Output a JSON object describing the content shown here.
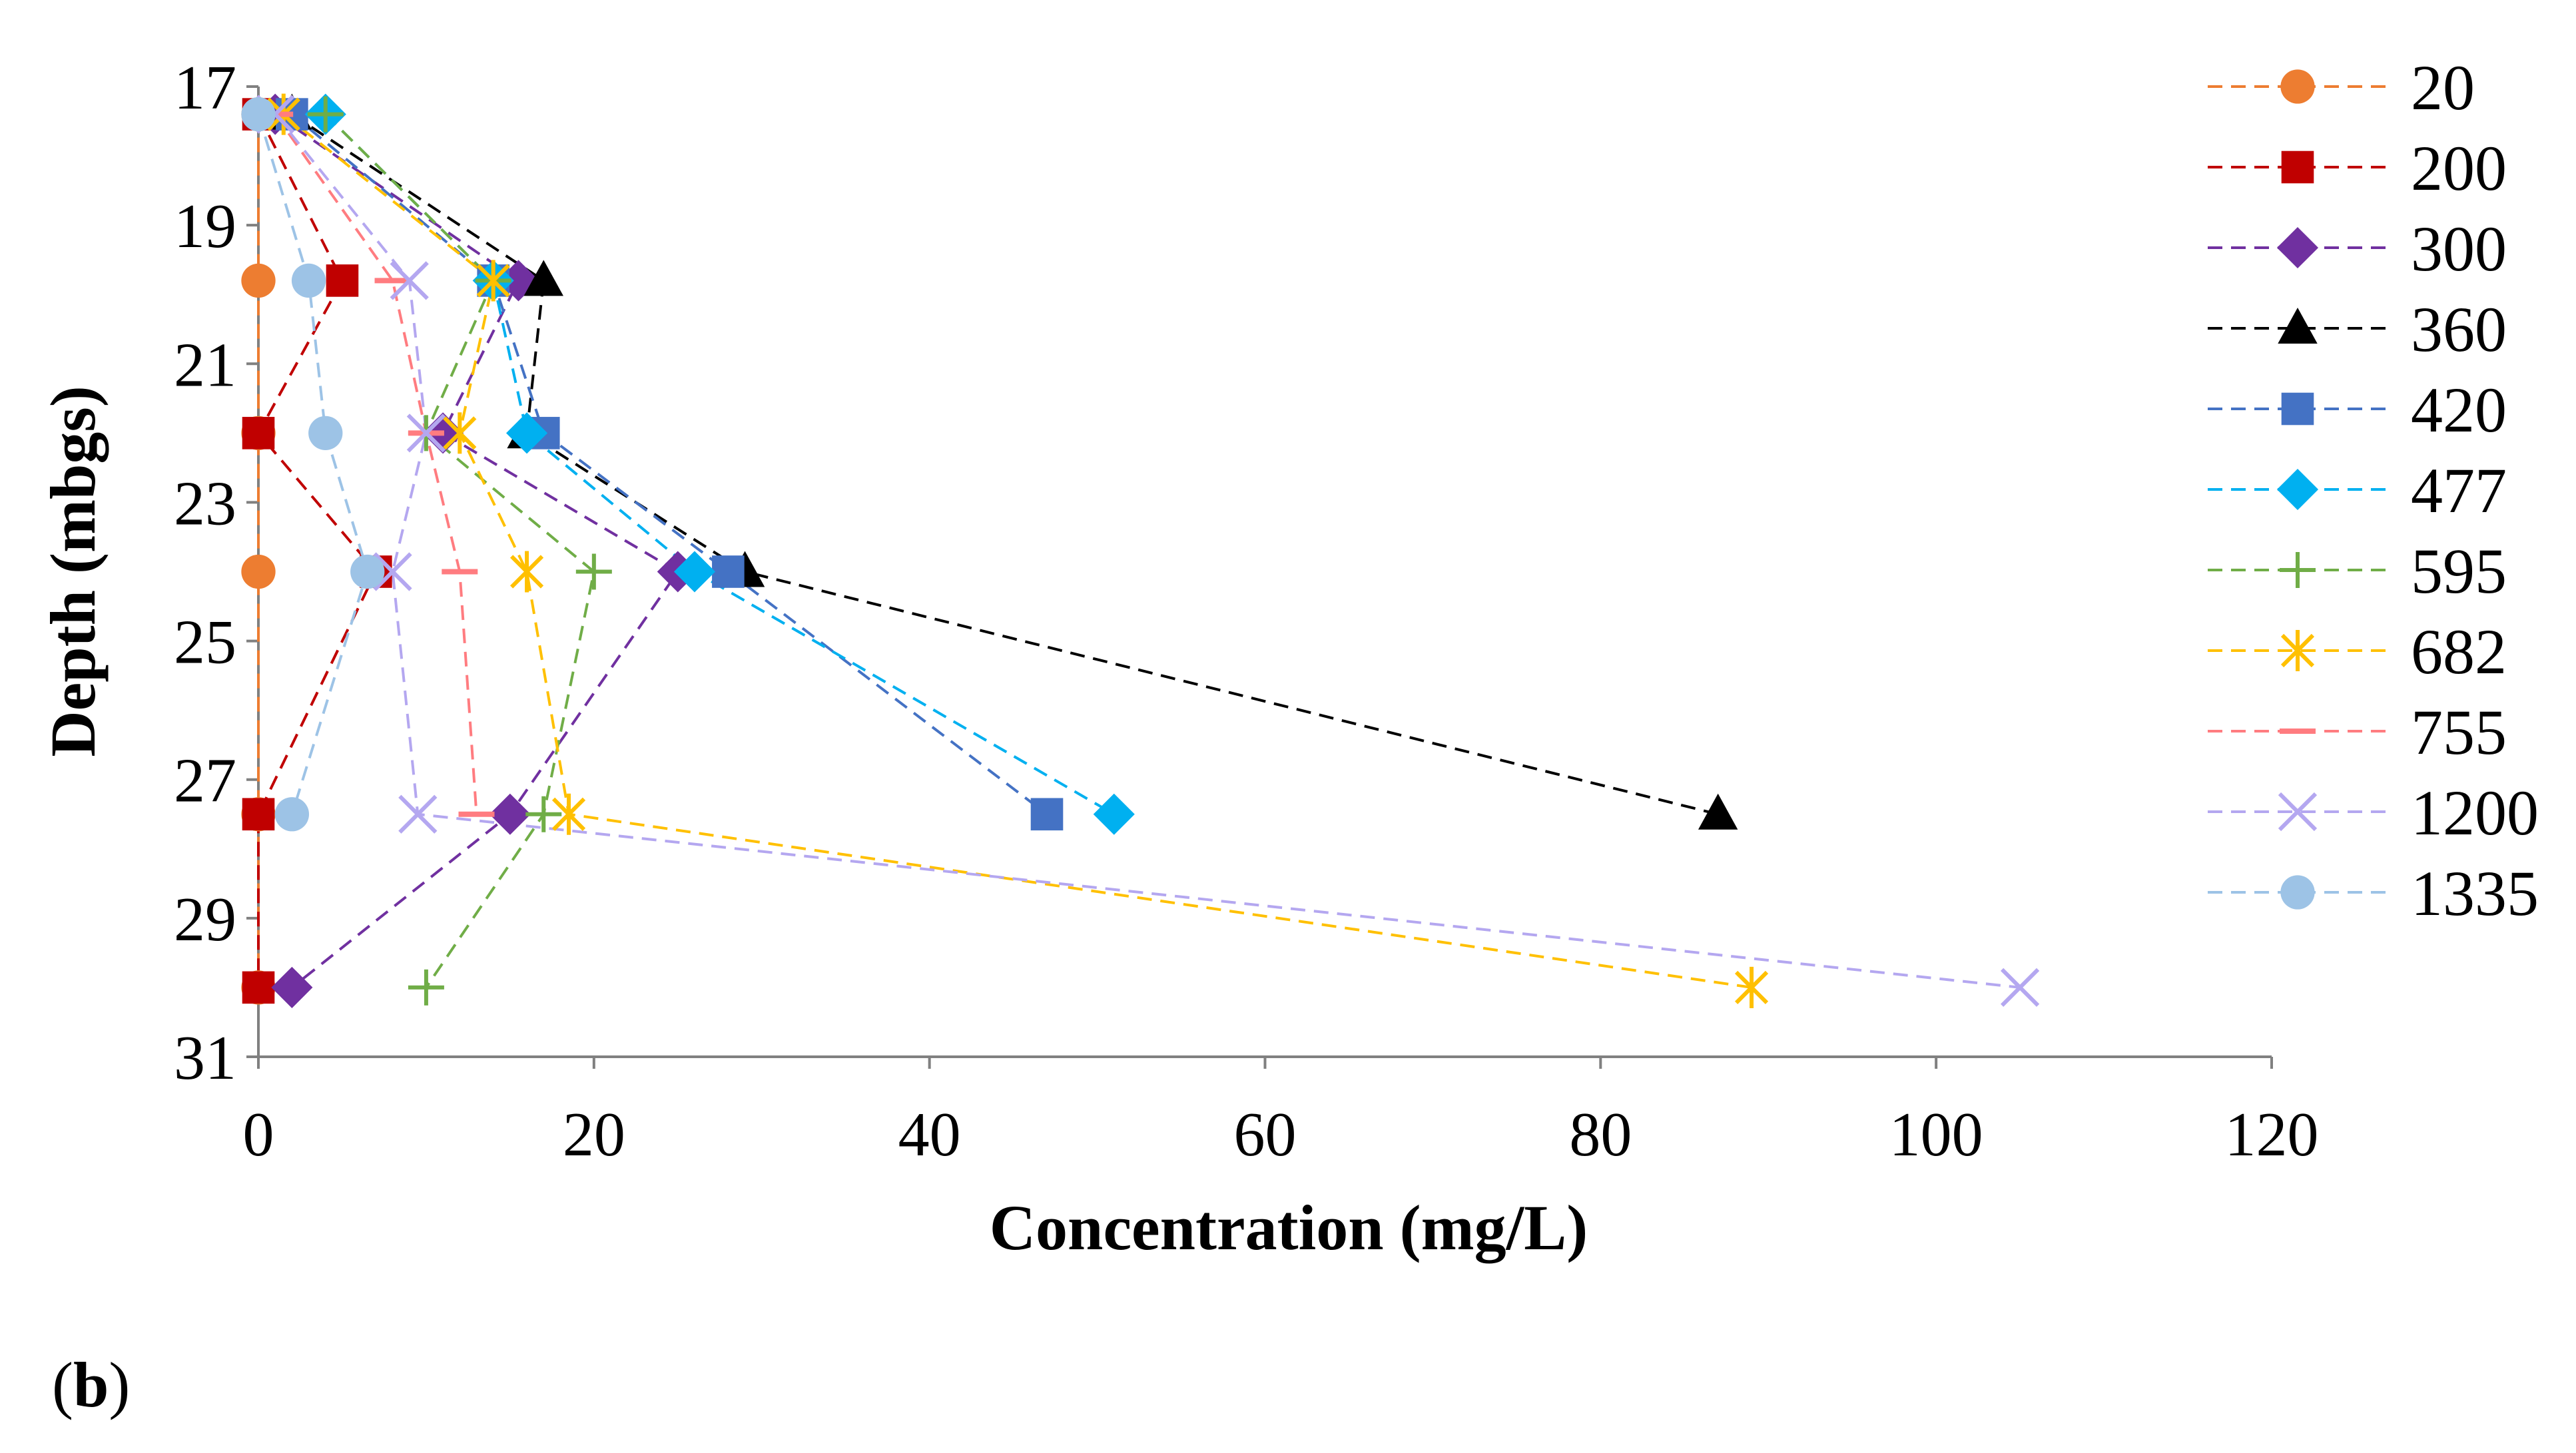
{
  "panel_label": {
    "open": "(",
    "letter": "b",
    "close": ")"
  },
  "chart_data": {
    "type": "line",
    "title": "",
    "xlabel": "Concentration (mg/L)",
    "ylabel": "Depth (mbgs)",
    "xlim": [
      0,
      120
    ],
    "ylim": [
      17,
      31
    ],
    "x_ticks": [
      0,
      20,
      40,
      60,
      80,
      100,
      120
    ],
    "y_ticks": [
      17,
      19,
      21,
      23,
      25,
      27,
      29,
      31
    ],
    "y_inverted": true,
    "grid": false,
    "legend_position": "right",
    "depths": [
      17.4,
      19.8,
      22.0,
      24.0,
      27.5,
      30.0
    ],
    "series": [
      {
        "name": "20",
        "color": "#ED7D31",
        "marker": "circle",
        "points": [
          [
            0,
            17.4
          ],
          [
            0,
            19.8
          ],
          [
            0,
            22.0
          ],
          [
            0,
            24.0
          ],
          [
            0,
            27.5
          ],
          [
            0,
            30.0
          ]
        ]
      },
      {
        "name": "200",
        "color": "#C00000",
        "marker": "square",
        "points": [
          [
            0,
            17.4
          ],
          [
            5,
            19.8
          ],
          [
            0,
            22.0
          ],
          [
            7,
            24.0
          ],
          [
            0,
            27.5
          ],
          [
            0,
            30.0
          ]
        ]
      },
      {
        "name": "300",
        "color": "#7030A0",
        "marker": "diamond",
        "points": [
          [
            1,
            17.4
          ],
          [
            15.5,
            19.8
          ],
          [
            11,
            22.0
          ],
          [
            25,
            24.0
          ],
          [
            15,
            27.5
          ],
          [
            2,
            30.0
          ]
        ]
      },
      {
        "name": "360",
        "color": "#000000",
        "marker": "triangle",
        "points": [
          [
            2,
            17.4
          ],
          [
            17,
            19.8
          ],
          [
            16,
            22.0
          ],
          [
            29,
            24.0
          ],
          [
            87,
            27.5
          ]
        ]
      },
      {
        "name": "420",
        "color": "#4472C4",
        "marker": "square",
        "points": [
          [
            2,
            17.4
          ],
          [
            14,
            19.8
          ],
          [
            17,
            22.0
          ],
          [
            28,
            24.0
          ],
          [
            47,
            27.5
          ]
        ]
      },
      {
        "name": "477",
        "color": "#00B0F0",
        "marker": "diamond",
        "points": [
          [
            4,
            17.4
          ],
          [
            14,
            19.8
          ],
          [
            16,
            22.0
          ],
          [
            26,
            24.0
          ],
          [
            51,
            27.5
          ]
        ]
      },
      {
        "name": "595",
        "color": "#70AD47",
        "marker": "plus",
        "points": [
          [
            4,
            17.4
          ],
          [
            14,
            19.8
          ],
          [
            10,
            22.0
          ],
          [
            20,
            24.0
          ],
          [
            17,
            27.5
          ],
          [
            10,
            30.0
          ]
        ]
      },
      {
        "name": "682",
        "color": "#FFC000",
        "marker": "asterisk",
        "points": [
          [
            1.5,
            17.4
          ],
          [
            14,
            19.8
          ],
          [
            12,
            22.0
          ],
          [
            16,
            24.0
          ],
          [
            18.5,
            27.5
          ],
          [
            89,
            30.0
          ]
        ]
      },
      {
        "name": "755",
        "color": "#FF7C80",
        "marker": "dash",
        "points": [
          [
            1,
            17.4
          ],
          [
            8,
            19.8
          ],
          [
            10,
            22.0
          ],
          [
            12,
            24.0
          ],
          [
            13,
            27.5
          ]
        ]
      },
      {
        "name": "1200",
        "color": "#B4A7F0",
        "marker": "x",
        "points": [
          [
            1,
            17.4
          ],
          [
            9,
            19.8
          ],
          [
            10,
            22.0
          ],
          [
            8,
            24.0
          ],
          [
            9.5,
            27.5
          ],
          [
            105,
            30.0
          ]
        ]
      },
      {
        "name": "1335",
        "color": "#9DC3E6",
        "marker": "circle",
        "points": [
          [
            0,
            17.4
          ],
          [
            3,
            19.8
          ],
          [
            4,
            22.0
          ],
          [
            6.5,
            24.0
          ],
          [
            2,
            27.5
          ]
        ]
      }
    ]
  }
}
